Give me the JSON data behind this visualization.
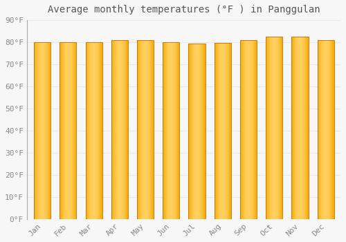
{
  "title": "Average monthly temperatures (°F ) in Panggulan",
  "months": [
    "Jan",
    "Feb",
    "Mar",
    "Apr",
    "May",
    "Jun",
    "Jul",
    "Aug",
    "Sep",
    "Oct",
    "Nov",
    "Dec"
  ],
  "values": [
    80.1,
    80.1,
    80.1,
    81.0,
    81.0,
    80.1,
    79.3,
    79.8,
    80.8,
    82.6,
    82.6,
    81.0
  ],
  "bar_color_dark": "#F5A800",
  "bar_color_light": "#FFD060",
  "background_color": "#f7f7f7",
  "plot_bg_color": "#f7f7f7",
  "grid_color": "#e8e8e8",
  "yticks": [
    0,
    10,
    20,
    30,
    40,
    50,
    60,
    70,
    80,
    90
  ],
  "ylim": [
    0,
    90
  ],
  "title_fontsize": 10,
  "tick_fontsize": 8,
  "bar_width": 0.65
}
